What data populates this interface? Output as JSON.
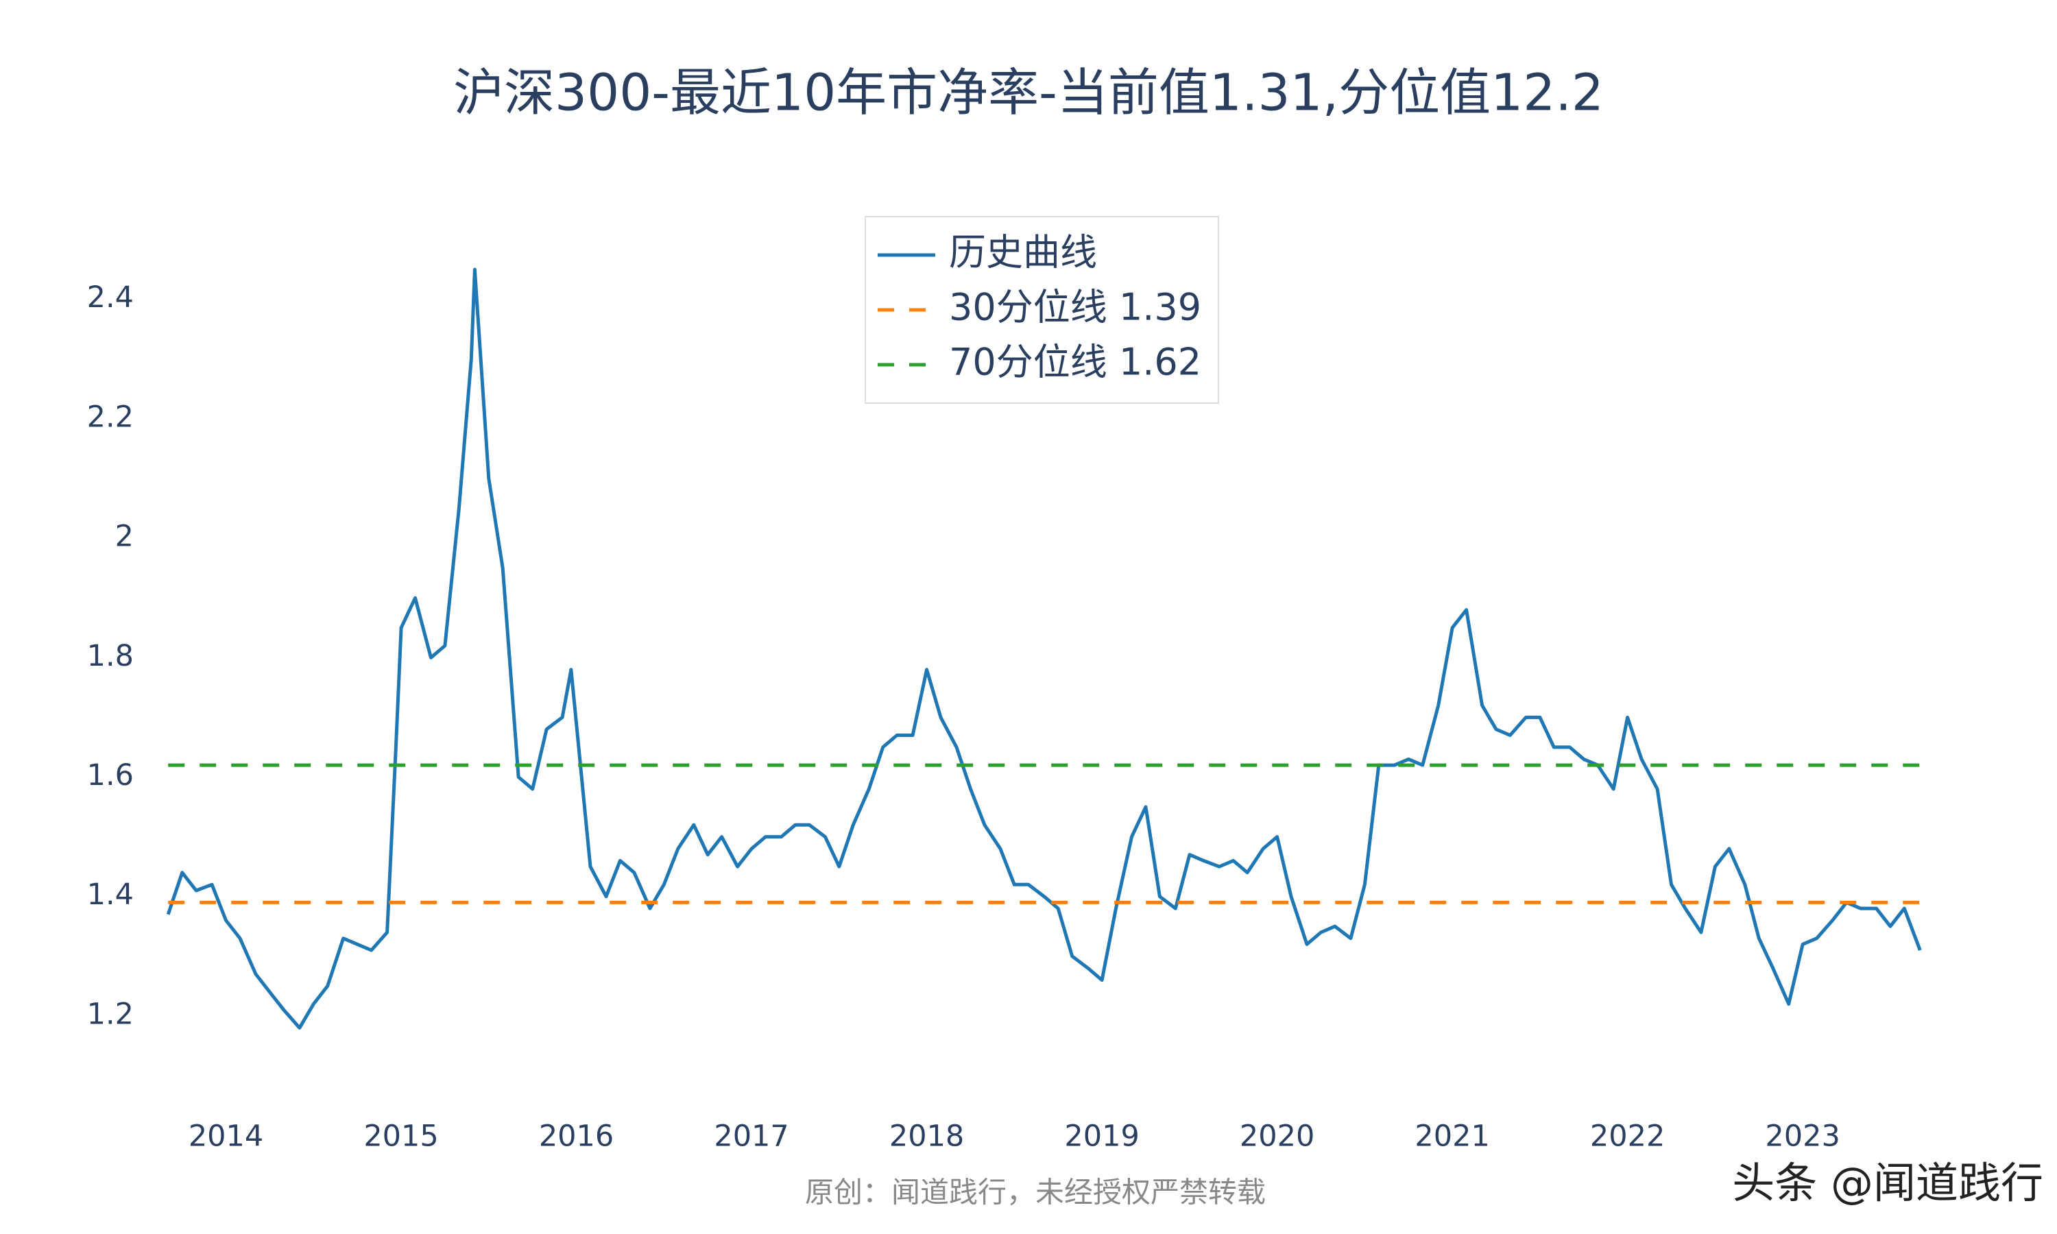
{
  "chart_data": {
    "type": "line",
    "title": "沪深300-最近10年市净率-当前值1.31,分位值12.2",
    "footnote": "原创：闻道践行，未经授权严禁转载",
    "watermark": "头条 @闻道践行",
    "xlim": [
      2013.63,
      2023.7
    ],
    "xticks": [
      2014,
      2015,
      2016,
      2017,
      2018,
      2019,
      2020,
      2021,
      2022,
      2023
    ],
    "ylim": [
      1.1,
      2.55
    ],
    "yticks": [
      1.2,
      1.4,
      1.6,
      1.8,
      2,
      2.2,
      2.4
    ],
    "grid": false,
    "legend": "top",
    "series": [
      {
        "name": "历史曲线",
        "color": "#1f77b4",
        "dash": false,
        "x": [
          2013.67,
          2013.75,
          2013.83,
          2013.92,
          2014.0,
          2014.08,
          2014.17,
          2014.25,
          2014.33,
          2014.42,
          2014.5,
          2014.58,
          2014.67,
          2014.75,
          2014.83,
          2014.92,
          2014.97,
          2015.0,
          2015.08,
          2015.17,
          2015.25,
          2015.33,
          2015.4,
          2015.42,
          2015.5,
          2015.58,
          2015.67,
          2015.75,
          2015.83,
          2015.92,
          2015.97,
          2016.08,
          2016.17,
          2016.25,
          2016.33,
          2016.42,
          2016.5,
          2016.58,
          2016.67,
          2016.75,
          2016.83,
          2016.92,
          2017.0,
          2017.08,
          2017.17,
          2017.25,
          2017.33,
          2017.42,
          2017.5,
          2017.58,
          2017.67,
          2017.75,
          2017.83,
          2017.92,
          2018.0,
          2018.08,
          2018.17,
          2018.25,
          2018.33,
          2018.42,
          2018.5,
          2018.58,
          2018.67,
          2018.75,
          2018.83,
          2018.92,
          2019.0,
          2019.08,
          2019.17,
          2019.25,
          2019.33,
          2019.42,
          2019.5,
          2019.58,
          2019.67,
          2019.75,
          2019.83,
          2019.92,
          2020.0,
          2020.08,
          2020.17,
          2020.25,
          2020.33,
          2020.42,
          2020.5,
          2020.58,
          2020.67,
          2020.75,
          2020.83,
          2020.92,
          2021.0,
          2021.08,
          2021.17,
          2021.25,
          2021.33,
          2021.42,
          2021.5,
          2021.58,
          2021.67,
          2021.75,
          2021.83,
          2021.92,
          2022.0,
          2022.08,
          2022.17,
          2022.25,
          2022.33,
          2022.42,
          2022.5,
          2022.58,
          2022.67,
          2022.75,
          2022.83,
          2022.92,
          2023.0,
          2023.08,
          2023.17,
          2023.25,
          2023.33,
          2023.42,
          2023.5,
          2023.58,
          2023.67
        ],
        "values": [
          1.37,
          1.44,
          1.41,
          1.42,
          1.36,
          1.33,
          1.27,
          1.24,
          1.21,
          1.18,
          1.22,
          1.25,
          1.33,
          1.32,
          1.31,
          1.34,
          1.65,
          1.85,
          1.9,
          1.8,
          1.82,
          2.05,
          2.3,
          2.45,
          2.1,
          1.95,
          1.6,
          1.58,
          1.68,
          1.7,
          1.78,
          1.45,
          1.4,
          1.46,
          1.44,
          1.38,
          1.42,
          1.48,
          1.52,
          1.47,
          1.5,
          1.45,
          1.48,
          1.5,
          1.5,
          1.52,
          1.52,
          1.5,
          1.45,
          1.52,
          1.58,
          1.65,
          1.67,
          1.67,
          1.78,
          1.7,
          1.65,
          1.58,
          1.52,
          1.48,
          1.42,
          1.42,
          1.4,
          1.38,
          1.3,
          1.28,
          1.26,
          1.38,
          1.5,
          1.55,
          1.4,
          1.38,
          1.47,
          1.46,
          1.45,
          1.46,
          1.44,
          1.48,
          1.5,
          1.4,
          1.32,
          1.34,
          1.35,
          1.33,
          1.42,
          1.62,
          1.62,
          1.63,
          1.62,
          1.72,
          1.85,
          1.88,
          1.72,
          1.68,
          1.67,
          1.7,
          1.7,
          1.65,
          1.65,
          1.63,
          1.62,
          1.58,
          1.7,
          1.63,
          1.58,
          1.42,
          1.38,
          1.34,
          1.45,
          1.48,
          1.42,
          1.33,
          1.28,
          1.22,
          1.32,
          1.33,
          1.36,
          1.39,
          1.38,
          1.38,
          1.35,
          1.38,
          1.31
        ]
      },
      {
        "name": "30分位线 1.39",
        "color": "#ff7f0e",
        "dash": true,
        "x": [
          2013.67,
          2023.67
        ],
        "values": [
          1.39,
          1.39
        ]
      },
      {
        "name": "70分位线 1.62",
        "color": "#2ca02c",
        "dash": true,
        "x": [
          2013.67,
          2023.67
        ],
        "values": [
          1.62,
          1.62
        ]
      }
    ]
  }
}
